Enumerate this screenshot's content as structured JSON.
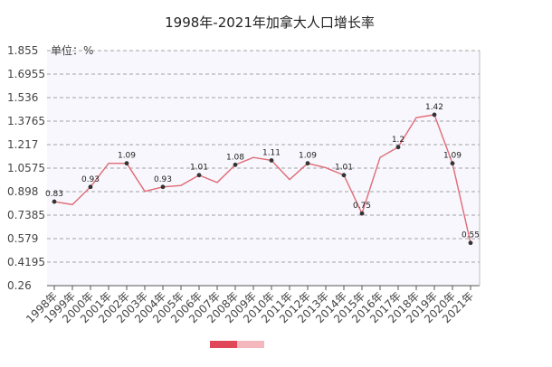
{
  "chart_data": {
    "type": "line",
    "title": "1998年-2021年加拿大人口增长率",
    "unit_label": "单位：%",
    "categories": [
      "1998年",
      "1999年",
      "2000年",
      "2001年",
      "2002年",
      "2003年",
      "2004年",
      "2005年",
      "2006年",
      "2007年",
      "2008年",
      "2009年",
      "2010年",
      "2011年",
      "2012年",
      "2013年",
      "2014年",
      "2015年",
      "2016年",
      "2017年",
      "2018年",
      "2019年",
      "2020年",
      "2021年"
    ],
    "values": [
      0.83,
      0.81,
      0.93,
      1.09,
      1.09,
      0.9,
      0.93,
      0.94,
      1.01,
      0.96,
      1.08,
      1.13,
      1.11,
      0.98,
      1.09,
      1.06,
      1.01,
      0.75,
      1.13,
      1.2,
      1.4,
      1.42,
      1.09,
      0.55
    ],
    "data_labels": [
      {
        "index": 0,
        "text": "0.83"
      },
      {
        "index": 2,
        "text": "0.93"
      },
      {
        "index": 4,
        "text": "1.09"
      },
      {
        "index": 6,
        "text": "0.93"
      },
      {
        "index": 8,
        "text": "1.01"
      },
      {
        "index": 10,
        "text": "1.08"
      },
      {
        "index": 12,
        "text": "1.11"
      },
      {
        "index": 14,
        "text": "1.09"
      },
      {
        "index": 16,
        "text": "1.01"
      },
      {
        "index": 17,
        "text": "0.75"
      },
      {
        "index": 19,
        "text": "1.2"
      },
      {
        "index": 21,
        "text": "1.42"
      },
      {
        "index": 22,
        "text": "1.09"
      },
      {
        "index": 23,
        "text": "0.55"
      }
    ],
    "yticks": [
      "1.855",
      "1.6955",
      "1.536",
      "1.3765",
      "1.217",
      "1.0575",
      "0.898",
      "0.7385",
      "0.579",
      "0.4195",
      "0.26"
    ],
    "ylim": [
      0.26,
      1.855
    ],
    "grid": true,
    "line_color": "#e06b75",
    "marker_color": "#333333",
    "plot_background": "#f7f7fd",
    "grid_color": "#888888"
  }
}
